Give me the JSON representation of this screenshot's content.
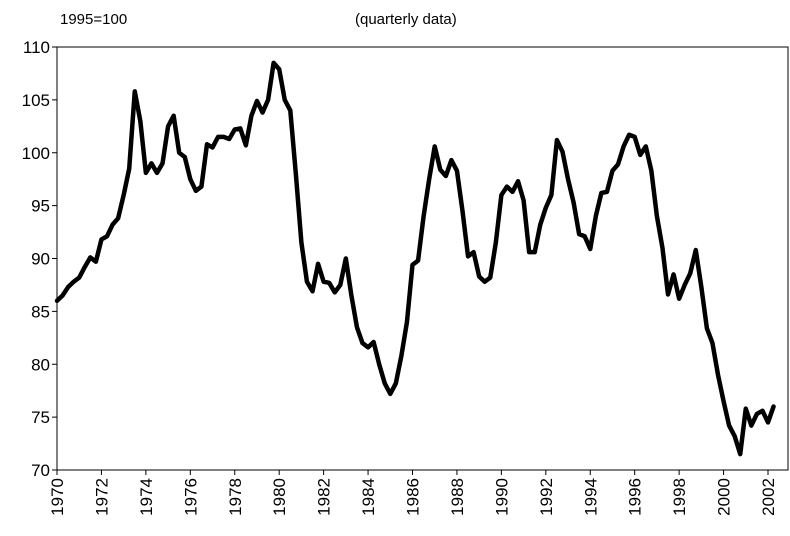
{
  "chart_data": {
    "type": "line",
    "title": "(quarterly data)",
    "ylabel": "1995=100",
    "color": "#000000",
    "x": [
      1970,
      1970.25,
      1970.5,
      1970.75,
      1971,
      1971.25,
      1971.5,
      1971.75,
      1972,
      1972.25,
      1972.5,
      1972.75,
      1973,
      1973.25,
      1973.5,
      1973.75,
      1974,
      1974.25,
      1974.5,
      1974.75,
      1975,
      1975.25,
      1975.5,
      1975.75,
      1976,
      1976.25,
      1976.5,
      1976.75,
      1977,
      1977.25,
      1977.5,
      1977.75,
      1978,
      1978.25,
      1978.5,
      1978.75,
      1979,
      1979.25,
      1979.5,
      1979.75,
      1980,
      1980.25,
      1980.5,
      1980.75,
      1981,
      1981.25,
      1981.5,
      1981.75,
      1982,
      1982.25,
      1982.5,
      1982.75,
      1983,
      1983.25,
      1983.5,
      1983.75,
      1984,
      1984.25,
      1984.5,
      1984.75,
      1985,
      1985.25,
      1985.5,
      1985.75,
      1986,
      1986.25,
      1986.5,
      1986.75,
      1987,
      1987.25,
      1987.5,
      1987.75,
      1988,
      1988.25,
      1988.5,
      1988.75,
      1989,
      1989.25,
      1989.5,
      1989.75,
      1990,
      1990.25,
      1990.5,
      1990.75,
      1991,
      1991.25,
      1991.5,
      1991.75,
      1992,
      1992.25,
      1992.5,
      1992.75,
      1993,
      1993.25,
      1993.5,
      1993.75,
      1994,
      1994.25,
      1994.5,
      1994.75,
      1995,
      1995.25,
      1995.5,
      1995.75,
      1996,
      1996.25,
      1996.5,
      1996.75,
      1997,
      1997.25,
      1997.5,
      1997.75,
      1998,
      1998.25,
      1998.5,
      1998.75,
      1999,
      1999.25,
      1999.5,
      1999.75,
      2000,
      2000.25,
      2000.5,
      2000.75,
      2001,
      2001.25,
      2001.5,
      2001.75,
      2002,
      2002.25
    ],
    "values": [
      86,
      86.5,
      87.3,
      87.8,
      88.2,
      89.2,
      90.1,
      89.7,
      91.8,
      92.1,
      93.2,
      93.8,
      96,
      98.5,
      105.8,
      103,
      98.1,
      99,
      98.1,
      99,
      102.5,
      103.5,
      100,
      99.6,
      97.5,
      96.4,
      96.8,
      100.8,
      100.5,
      101.5,
      101.5,
      101.3,
      102.2,
      102.3,
      100.7,
      103.5,
      104.9,
      103.8,
      105,
      108.5,
      107.9,
      105,
      104,
      98,
      91.5,
      87.8,
      86.9,
      89.5,
      87.8,
      87.7,
      86.8,
      87.5,
      90,
      86.5,
      83.5,
      82,
      81.6,
      82.1,
      80,
      78.2,
      77.2,
      78.2,
      80.8,
      84,
      89.4,
      89.8,
      94,
      97.5,
      100.6,
      98.4,
      97.8,
      99.3,
      98.3,
      94.5,
      90.2,
      90.6,
      88.3,
      87.8,
      88.2,
      91.5,
      96,
      96.8,
      96.3,
      97.3,
      95.5,
      90.6,
      90.6,
      93.2,
      94.8,
      96,
      101.2,
      100.1,
      97.5,
      95.3,
      92.3,
      92.1,
      90.9,
      94,
      96.2,
      96.3,
      98.3,
      98.9,
      100.6,
      101.7,
      101.5,
      99.8,
      100.6,
      98.3,
      94,
      91,
      86.6,
      88.5,
      86.2,
      87.5,
      88.6,
      90.8,
      87.3,
      83.4,
      82,
      79,
      76.5,
      74.2,
      73.2,
      71.5,
      75.8,
      74.2,
      75.3,
      75.6,
      74.5,
      76
    ],
    "xlim": [
      1970,
      2002.9
    ],
    "xticks": [
      1970,
      1972,
      1974,
      1976,
      1978,
      1980,
      1982,
      1984,
      1986,
      1988,
      1990,
      1992,
      1994,
      1996,
      1998,
      2000,
      2002
    ],
    "ylim": [
      70,
      110
    ],
    "yticks": [
      70,
      75,
      80,
      85,
      90,
      95,
      100,
      105,
      110
    ]
  }
}
